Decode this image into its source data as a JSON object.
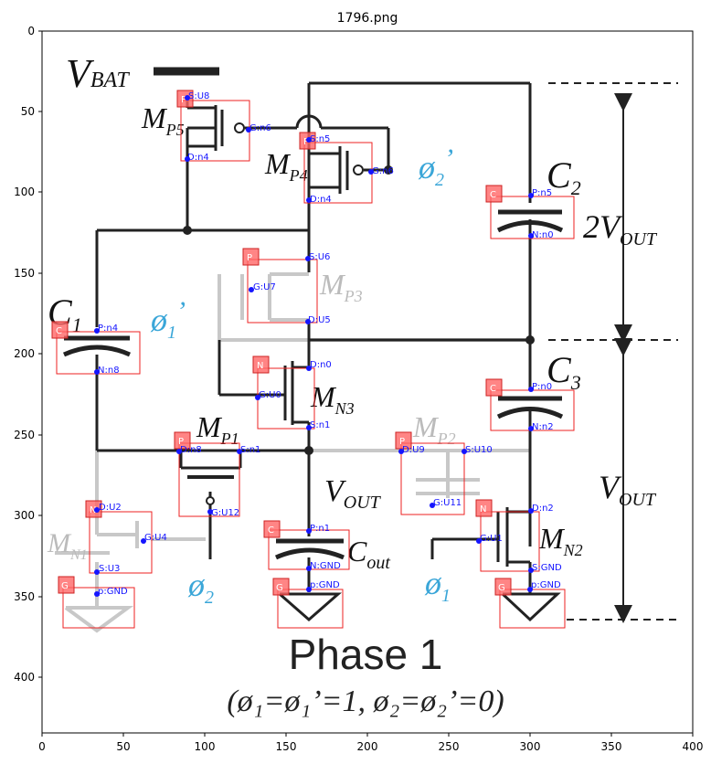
{
  "title": "1796.png",
  "axes": {
    "x_ticks": [
      "0",
      "50",
      "100",
      "150",
      "200",
      "250",
      "300",
      "350",
      "400"
    ],
    "y_ticks": [
      "0",
      "50",
      "100",
      "150",
      "200",
      "250",
      "300",
      "350",
      "400"
    ]
  },
  "circuit_text": {
    "vbat_main": "V",
    "vbat_sub": "BAT",
    "mp5_main": "M",
    "mp5_sub": "P5",
    "mp4_main": "M",
    "mp4_sub": "P4",
    "mp3_main": "M",
    "mp3_sub": "P3",
    "mn3_main": "M",
    "mn3_sub": "N3",
    "mp1_main": "M",
    "mp1_sub": "P1",
    "mp2_main": "M",
    "mp2_sub": "P2",
    "mn1_main": "M",
    "mn1_sub": "N1",
    "mn2_main": "M",
    "mn2_sub": "N2",
    "c1_main": "C",
    "c1_sub": "1",
    "c2_main": "C",
    "c2_sub": "2",
    "c3_main": "C",
    "c3_sub": "3",
    "cout_main": "C",
    "cout_sub": "out",
    "vout_main": "V",
    "vout_sub": "OUT",
    "two_vout_main": "2V",
    "two_vout_sub": "OUT",
    "right_vout_main": "V",
    "right_vout_sub": "OUT",
    "phi2p_main": "ø",
    "phi2p_sub": "2",
    "phi2p_prime": "’",
    "phi1p_main": "ø",
    "phi1p_sub": "1",
    "phi1p_prime": "’",
    "phi2_main": "ø",
    "phi2_sub": "2",
    "phi1_main": "ø",
    "phi1_sub": "1",
    "phase_title": "Phase 1",
    "phase_cond": "(ø₁=ø₁’=1, ø₂=ø₂’=0)"
  },
  "annotations": [
    {
      "tag": "P",
      "labels": [
        "S:U8",
        "G:n6",
        "D:n4"
      ]
    },
    {
      "tag": "P",
      "labels": [
        "S:n5",
        "G:n6",
        "D:n4"
      ]
    },
    {
      "tag": "C",
      "labels": [
        "P:n5",
        "N:n0"
      ]
    },
    {
      "tag": "P",
      "labels": [
        "S:U6",
        "G:U7",
        "D:U5"
      ]
    },
    {
      "tag": "C",
      "labels": [
        "P:n4",
        "N:n8"
      ]
    },
    {
      "tag": "N",
      "labels": [
        "D:n0",
        "G:U0",
        "S:n1"
      ]
    },
    {
      "tag": "C",
      "labels": [
        "P:n0",
        "N:n2"
      ]
    },
    {
      "tag": "P",
      "labels": [
        "D:n8",
        "S:n1",
        "G:U12"
      ]
    },
    {
      "tag": "P",
      "labels": [
        "D:U9",
        "S:U10",
        "G:U11"
      ]
    },
    {
      "tag": "N",
      "labels": [
        "D:U2",
        "G:U4",
        "S:U3"
      ]
    },
    {
      "tag": "C",
      "labels": [
        "P:n1",
        "N:GND"
      ]
    },
    {
      "tag": "N",
      "labels": [
        "D:n2",
        "G:U1",
        "S:GND"
      ]
    },
    {
      "tag": "G",
      "labels": [
        "p:GND"
      ]
    },
    {
      "tag": "G",
      "labels": [
        "p:GND"
      ]
    },
    {
      "tag": "G",
      "labels": [
        "p:GND"
      ]
    }
  ]
}
